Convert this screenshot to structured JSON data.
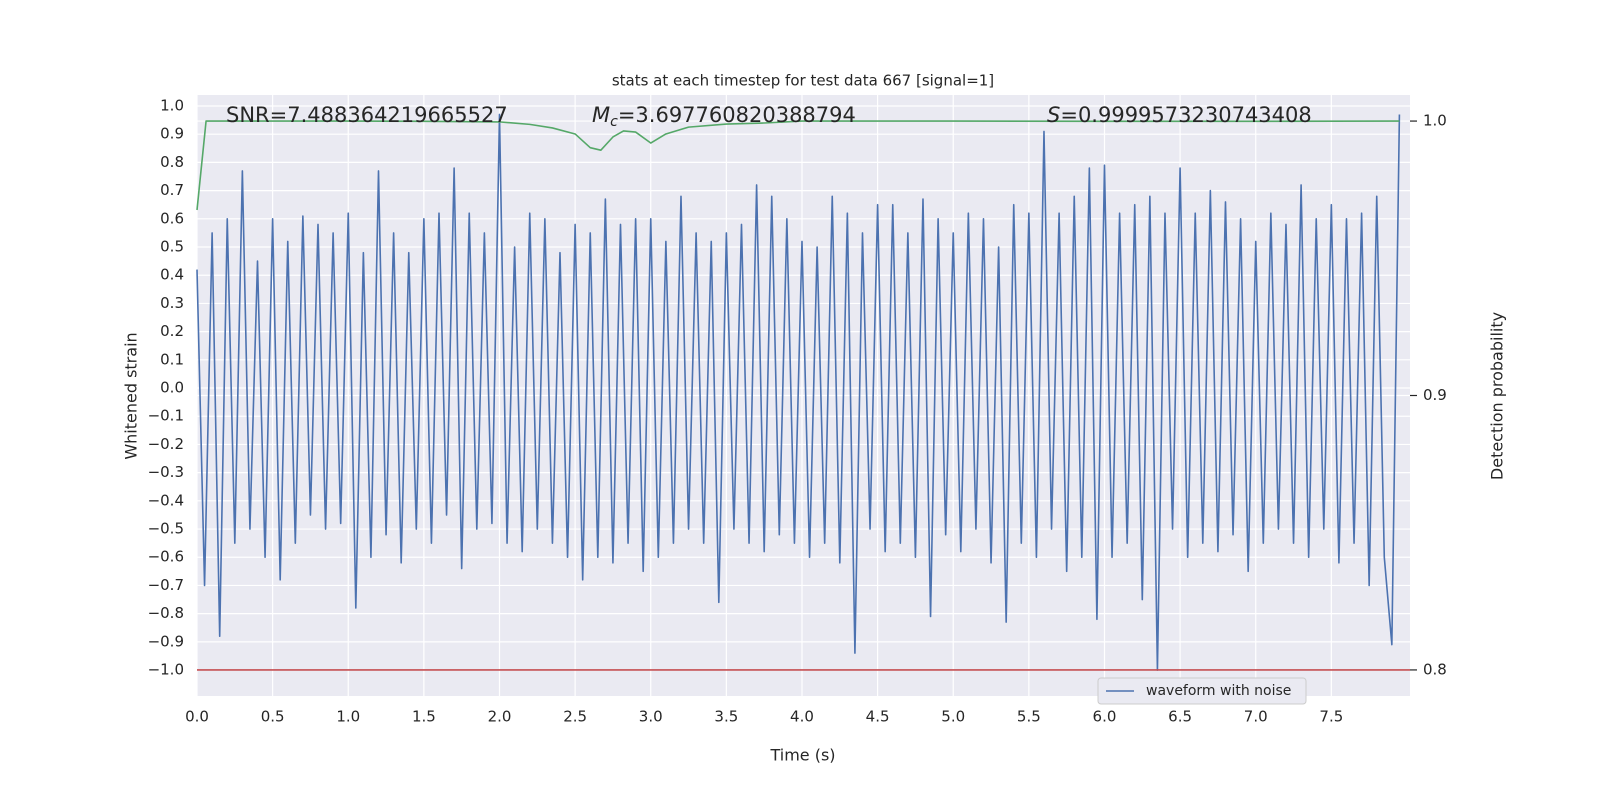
{
  "chart_data": {
    "type": "line",
    "title": "stats at each timestep for test data 667 [signal=1]",
    "x_label": "Time (s)",
    "y_label": "Whitened strain",
    "y2_label": "Detection probability",
    "annotations": [
      {
        "text": "SNR=7.488364219665527"
      },
      {
        "symbol": "M",
        "subscript": "c",
        "text": "=3.697760820388794"
      },
      {
        "symbol": "S",
        "text": "=0.9999573230743408"
      }
    ],
    "xlim": [
      0,
      8.02
    ],
    "ylim": [
      -1.092,
      1.039
    ],
    "y2lim": [
      0.7905,
      1.0095
    ],
    "xticks": [
      {
        "value": 0,
        "label": "0.0"
      },
      0.5,
      {
        "value": 1,
        "label": "1.0"
      },
      1.5,
      {
        "value": 2,
        "label": "2.0"
      },
      2.5,
      {
        "value": 3,
        "label": "3.0"
      },
      3.5,
      {
        "value": 4,
        "label": "4.0"
      },
      4.5,
      {
        "value": 5,
        "label": "5.0"
      },
      5.5,
      {
        "value": 6,
        "label": "6.0"
      },
      6.5,
      {
        "value": 7,
        "label": "7.0"
      },
      7.5
    ],
    "yticks": [
      {
        "value": 1,
        "label": "1.0"
      },
      0.9,
      0.8,
      0.7,
      0.6,
      0.5,
      0.4,
      0.3,
      0.2,
      0.1,
      {
        "value": 0,
        "label": "0.0"
      },
      {
        "value": -0.1,
        "label": "−0.1"
      },
      {
        "value": -0.2,
        "label": "−0.2"
      },
      {
        "value": -0.3,
        "label": "−0.3"
      },
      {
        "value": -0.4,
        "label": "−0.4"
      },
      {
        "value": -0.5,
        "label": "−0.5"
      },
      {
        "value": -0.6,
        "label": "−0.6"
      },
      {
        "value": -0.7,
        "label": "−0.7"
      },
      {
        "value": -0.8,
        "label": "−0.8"
      },
      {
        "value": -0.9,
        "label": "−0.9"
      },
      {
        "value": -1,
        "label": "−1.0"
      }
    ],
    "y2ticks": [
      {
        "value": 1,
        "label": "1.0"
      },
      0.9,
      0.8
    ],
    "grid": true,
    "legend": "lower right",
    "reference_line": {
      "value": 0.8,
      "axis": "y2",
      "color": "#c44e52"
    },
    "series": [
      {
        "name": "waveform with noise",
        "color": "#4c72b0",
        "x": [
          0,
          0.05,
          0.1,
          0.15,
          0.2,
          0.25,
          0.3,
          0.35,
          0.4,
          0.45,
          0.5,
          0.55,
          0.6,
          0.65,
          0.7,
          0.75,
          0.8,
          0.85,
          0.9,
          0.95,
          1,
          1.05,
          1.1,
          1.15,
          1.2,
          1.25,
          1.3,
          1.35,
          1.4,
          1.45,
          1.5,
          1.55,
          1.6,
          1.65,
          1.7,
          1.75,
          1.8,
          1.85,
          1.9,
          1.95,
          2,
          2.05,
          2.1,
          2.15,
          2.2,
          2.25,
          2.3,
          2.35,
          2.4,
          2.45,
          2.5,
          2.55,
          2.6,
          2.65,
          2.7,
          2.75,
          2.8,
          2.85,
          2.9,
          2.95,
          3,
          3.05,
          3.1,
          3.15,
          3.2,
          3.25,
          3.3,
          3.35,
          3.4,
          3.45,
          3.5,
          3.55,
          3.6,
          3.65,
          3.7,
          3.75,
          3.8,
          3.85,
          3.9,
          3.95,
          4,
          4.05,
          4.1,
          4.15,
          4.2,
          4.25,
          4.3,
          4.35,
          4.4,
          4.45,
          4.5,
          4.55,
          4.6,
          4.65,
          4.7,
          4.75,
          4.8,
          4.85,
          4.9,
          4.95,
          5,
          5.05,
          5.1,
          5.15,
          5.2,
          5.25,
          5.3,
          5.35,
          5.4,
          5.45,
          5.5,
          5.55,
          5.6,
          5.65,
          5.7,
          5.75,
          5.8,
          5.85,
          5.9,
          5.95,
          6,
          6.05,
          6.1,
          6.15,
          6.2,
          6.25,
          6.3,
          6.35,
          6.4,
          6.45,
          6.5,
          6.55,
          6.6,
          6.65,
          6.7,
          6.75,
          6.8,
          6.85,
          6.9,
          6.95,
          7,
          7.05,
          7.1,
          7.15,
          7.2,
          7.25,
          7.3,
          7.35,
          7.4,
          7.45,
          7.5,
          7.55,
          7.6,
          7.65,
          7.7,
          7.75,
          7.8,
          7.85,
          7.9,
          7.95
        ],
        "values": [
          0.42,
          -0.7,
          0.55,
          -0.88,
          0.6,
          -0.55,
          0.77,
          -0.5,
          0.45,
          -0.6,
          0.6,
          -0.68,
          0.52,
          -0.55,
          0.61,
          -0.45,
          0.58,
          -0.5,
          0.55,
          -0.48,
          0.62,
          -0.78,
          0.48,
          -0.6,
          0.77,
          -0.52,
          0.55,
          -0.62,
          0.48,
          -0.5,
          0.6,
          -0.55,
          0.62,
          -0.45,
          0.78,
          -0.64,
          0.62,
          -0.5,
          0.55,
          -0.48,
          0.97,
          -0.55,
          0.5,
          -0.58,
          0.62,
          -0.5,
          0.6,
          -0.55,
          0.48,
          -0.6,
          0.58,
          -0.68,
          0.55,
          -0.6,
          0.67,
          -0.62,
          0.58,
          -0.55,
          0.6,
          -0.65,
          0.6,
          -0.6,
          0.52,
          -0.55,
          0.68,
          -0.5,
          0.55,
          -0.55,
          0.52,
          -0.76,
          0.55,
          -0.5,
          0.58,
          -0.55,
          0.72,
          -0.58,
          0.68,
          -0.52,
          0.6,
          -0.55,
          0.52,
          -0.6,
          0.5,
          -0.55,
          0.68,
          -0.62,
          0.62,
          -0.94,
          0.55,
          -0.5,
          0.65,
          -0.58,
          0.65,
          -0.55,
          0.55,
          -0.6,
          0.67,
          -0.81,
          0.6,
          -0.52,
          0.55,
          -0.58,
          0.62,
          -0.5,
          0.6,
          -0.62,
          0.5,
          -0.83,
          0.65,
          -0.55,
          0.62,
          -0.6,
          0.91,
          -0.5,
          0.62,
          -0.65,
          0.68,
          -0.6,
          0.78,
          -0.82,
          0.79,
          -0.6,
          0.62,
          -0.55,
          0.65,
          -0.75,
          0.68,
          -1.0,
          0.62,
          -0.5,
          0.78,
          -0.6,
          0.62,
          -0.55,
          0.7,
          -0.58,
          0.66,
          -0.52,
          0.6,
          -0.65,
          0.52,
          -0.55,
          0.62,
          -0.5,
          0.58,
          -0.55,
          0.72,
          -0.6,
          0.6,
          -0.5,
          0.65,
          -0.62,
          0.6,
          -0.55,
          0.62,
          -0.7,
          0.68,
          -0.6,
          -0.91,
          0.97
        ]
      },
      {
        "color": "#55a868",
        "axis": "y2",
        "x": [
          0,
          0.06,
          0.5,
          1,
          1.5,
          2,
          2.2,
          2.35,
          2.5,
          2.6,
          2.67,
          2.75,
          2.82,
          2.9,
          3,
          3.1,
          3.25,
          3.5,
          3.75,
          4,
          5,
          6,
          7,
          7.95
        ],
        "values": [
          0.9676,
          1.0,
          1.0,
          1.0,
          0.9999,
          0.9997,
          0.9988,
          0.9975,
          0.9953,
          0.9903,
          0.9894,
          0.9942,
          0.9964,
          0.996,
          0.992,
          0.9953,
          0.9978,
          0.9989,
          0.9993,
          1.0,
          1.0,
          0.9999,
          0.9999,
          1.0
        ]
      }
    ]
  }
}
